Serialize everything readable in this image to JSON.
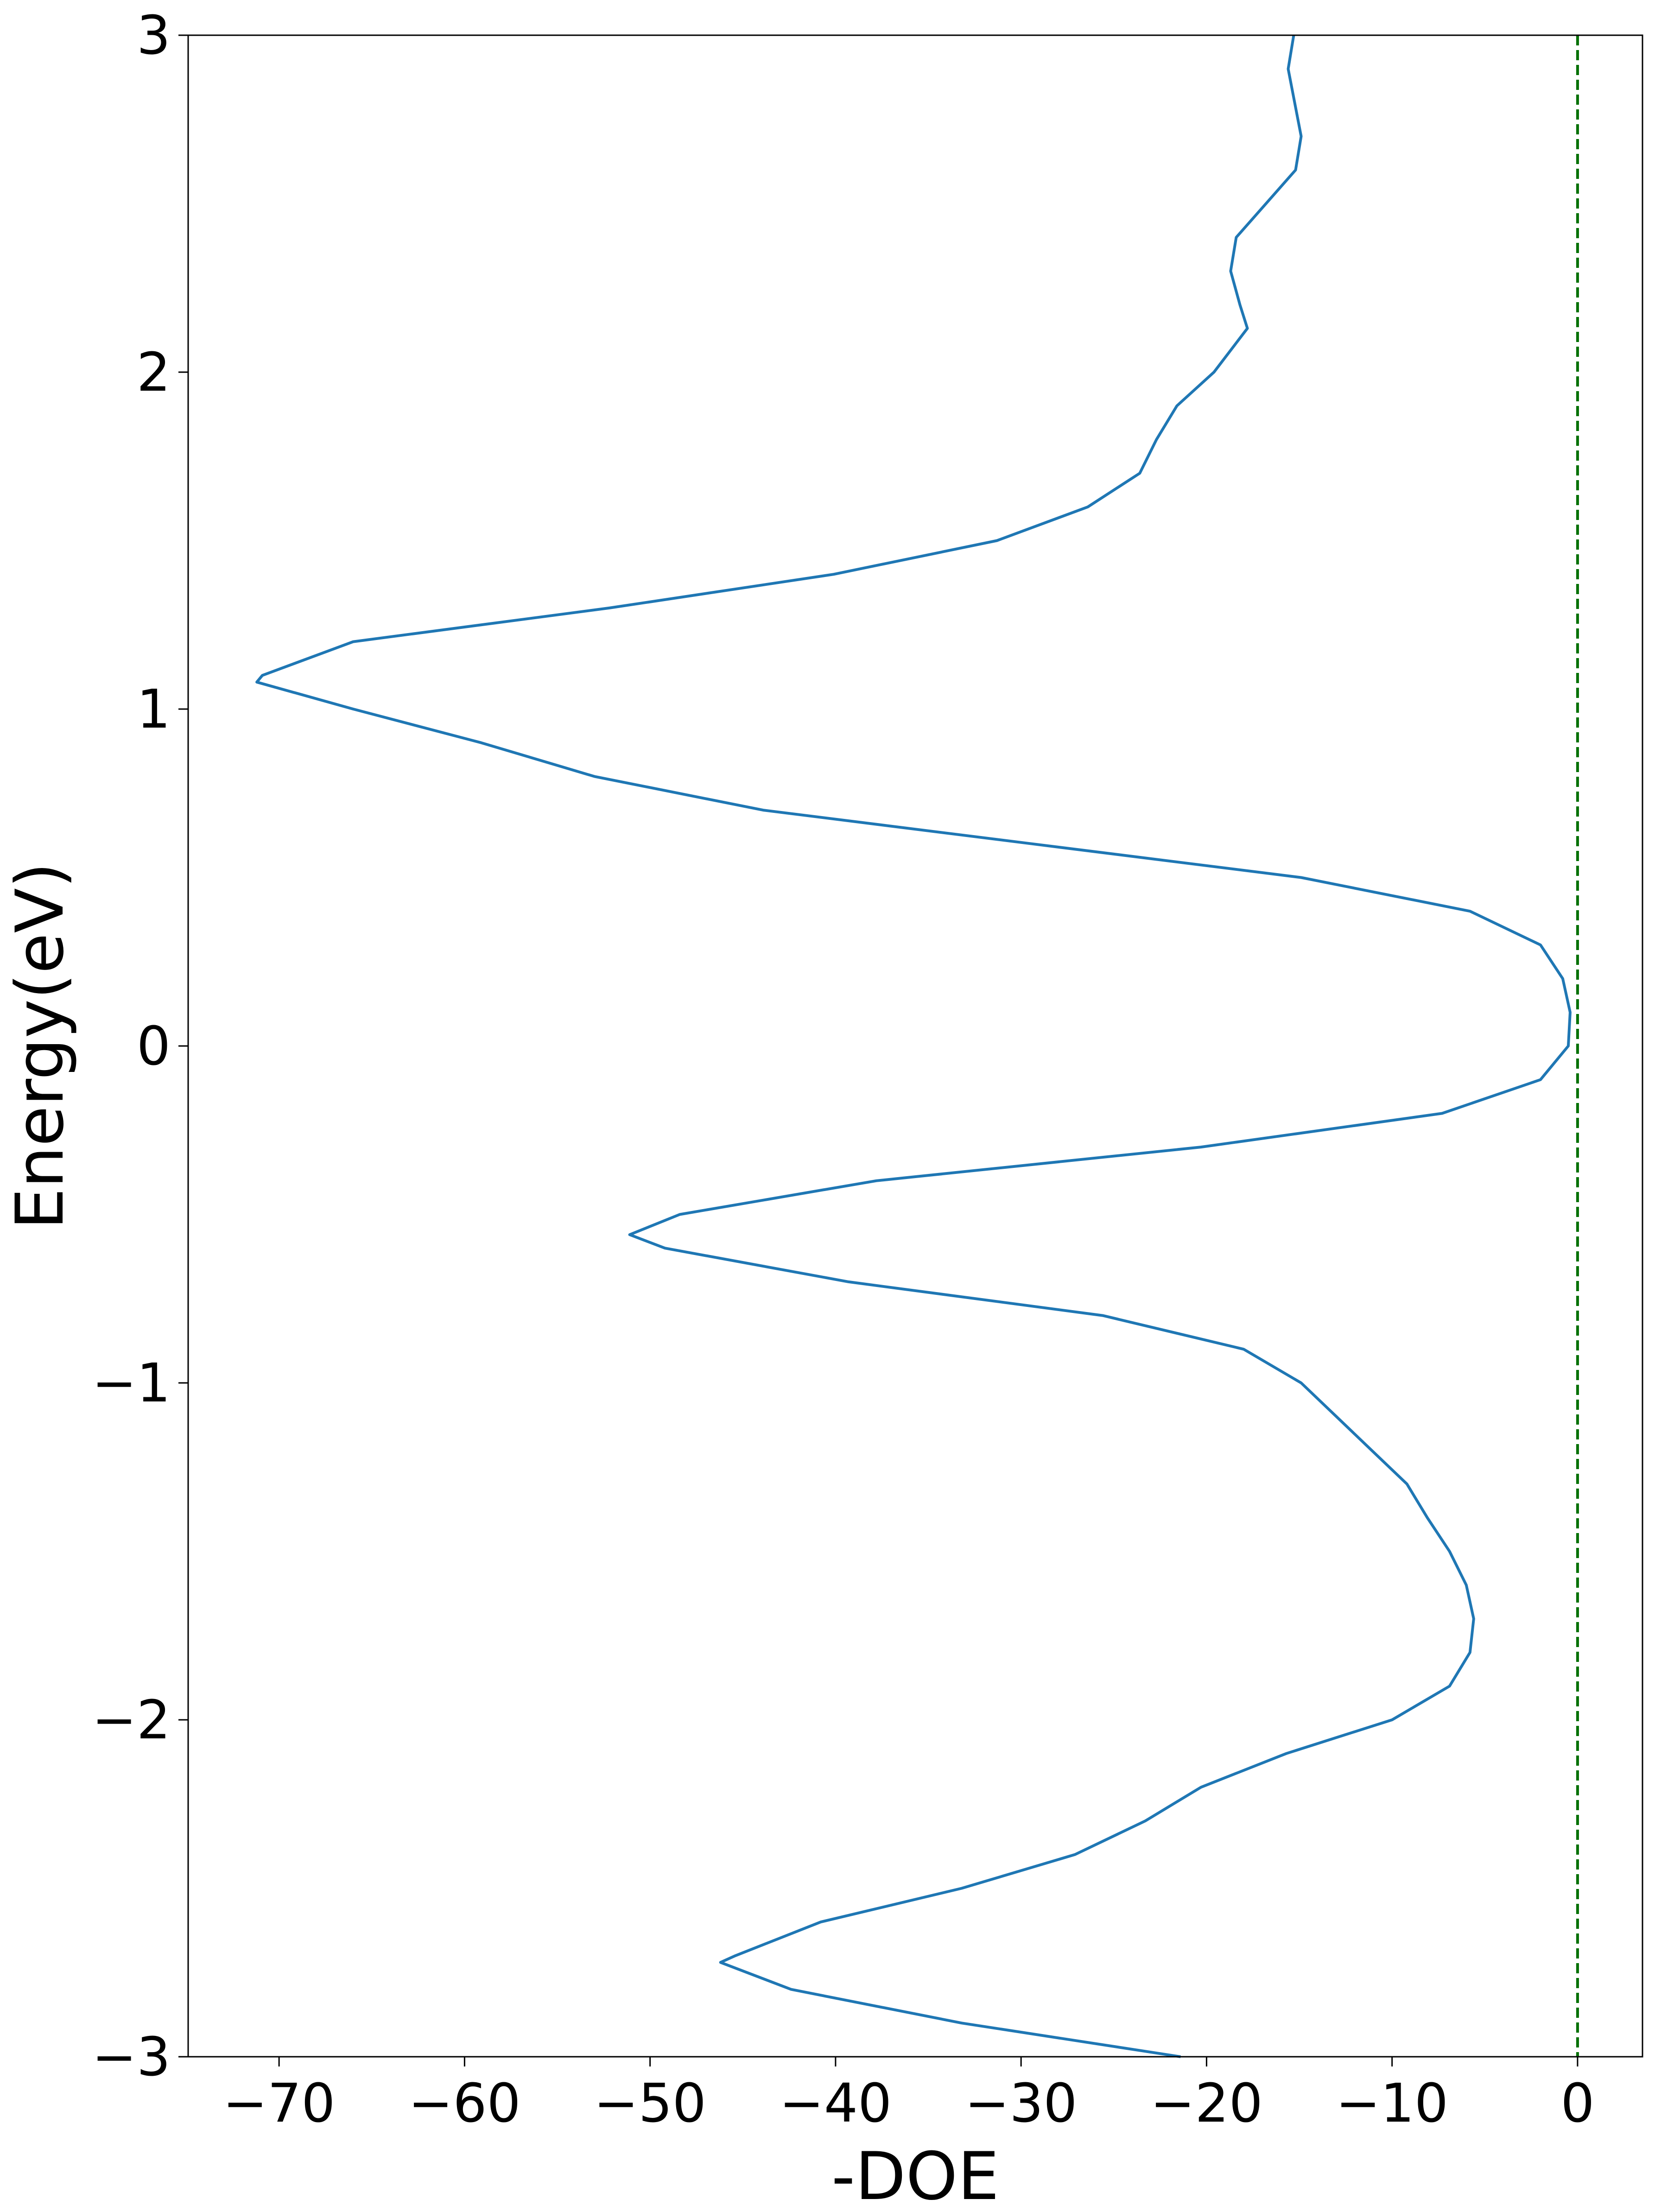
{
  "chart_data": {
    "type": "line",
    "xlabel": "-DOE",
    "ylabel": "Energy(eV)",
    "xlim": [
      -74.9,
      3.5
    ],
    "ylim": [
      -3,
      3
    ],
    "xticks": [
      {
        "value": -70,
        "label": "−70"
      },
      {
        "value": -60,
        "label": "−60"
      },
      {
        "value": -50,
        "label": "−50"
      },
      {
        "value": -40,
        "label": "−40"
      },
      {
        "value": -30,
        "label": "−30"
      },
      {
        "value": -20,
        "label": "−20"
      },
      {
        "value": -10,
        "label": "−10"
      },
      0
    ],
    "yticks": [
      {
        "value": -3,
        "label": "−3"
      },
      {
        "value": -2,
        "label": "−2"
      },
      {
        "value": -1,
        "label": "−1"
      },
      0,
      1,
      2,
      3
    ],
    "vline": {
      "value": 0,
      "color": "#007000",
      "dashed": true
    },
    "y": [
      3,
      2.9,
      2.7,
      2.6,
      2.5,
      2.4,
      2.3,
      2.2,
      2.13,
      2.0,
      1.9,
      1.8,
      1.7,
      1.6,
      1.5,
      1.4,
      1.3,
      1.2,
      1.1,
      1.08,
      1.0,
      0.9,
      0.8,
      0.7,
      0.6,
      0.5,
      0.4,
      0.3,
      0.2,
      0.1,
      0.0,
      -0.1,
      -0.2,
      -0.3,
      -0.4,
      -0.5,
      -0.56,
      -0.6,
      -0.7,
      -0.8,
      -0.9,
      -1.0,
      -1.1,
      -1.2,
      -1.3,
      -1.4,
      -1.5,
      -1.6,
      -1.7,
      -1.8,
      -1.9,
      -2.0,
      -2.1,
      -2.2,
      -2.3,
      -2.4,
      -2.5,
      -2.6,
      -2.7,
      -2.72,
      -2.8,
      -2.9,
      -3.0
    ],
    "series": [
      {
        "color": "#1f77b4",
        "values": [
          -15.3,
          -15.6,
          -14.9,
          -15.2,
          -16.8,
          -18.4,
          -18.7,
          -18.2,
          -17.8,
          -19.6,
          -21.6,
          -22.7,
          -23.6,
          -26.4,
          -31.3,
          -40.1,
          -52.2,
          -66.0,
          -70.9,
          -71.2,
          -66.0,
          -59.1,
          -53.0,
          -43.9,
          -29.4,
          -14.9,
          -5.8,
          -2.0,
          -0.8,
          -0.4,
          -0.5,
          -2.0,
          -7.3,
          -20.3,
          -37.8,
          -48.4,
          -51.1,
          -49.2,
          -39.3,
          -25.6,
          -18.0,
          -14.9,
          -13.0,
          -11.1,
          -9.2,
          -8.1,
          -6.9,
          -6.0,
          -5.6,
          -5.8,
          -6.9,
          -10.0,
          -15.7,
          -20.3,
          -23.3,
          -27.1,
          -33.2,
          -40.8,
          -45.4,
          -46.2,
          -42.4,
          -33.2,
          -21.4
        ]
      }
    ]
  }
}
